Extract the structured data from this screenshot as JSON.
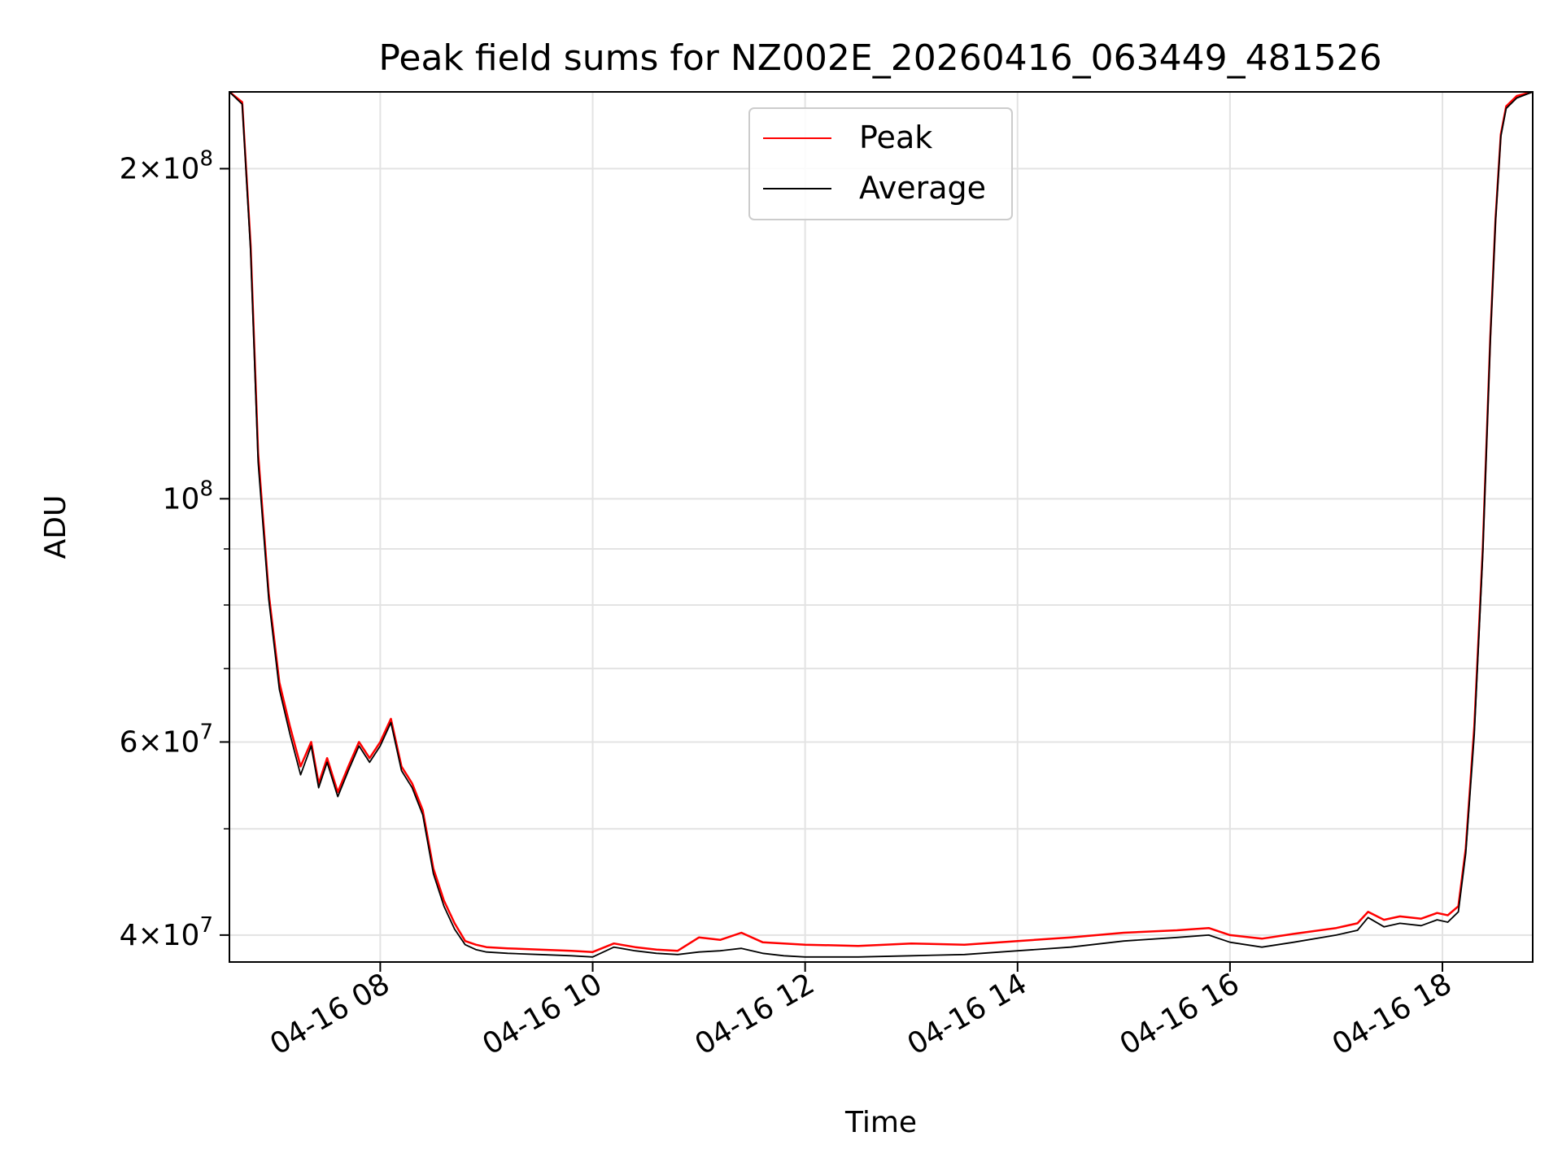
{
  "chart_data": {
    "type": "line",
    "title": "Peak field sums for NZ002E_20260416_063449_481526",
    "xlabel": "Time",
    "ylabel": "ADU",
    "yscale": "log",
    "xlim": [
      6.58,
      18.85
    ],
    "ylim": [
      37800000,
      235000000
    ],
    "grid": true,
    "legend_position": "upper-center",
    "x_ticks": [
      {
        "value": 8,
        "label": "04-16 08"
      },
      {
        "value": 10,
        "label": "04-16 10"
      },
      {
        "value": 12,
        "label": "04-16 12"
      },
      {
        "value": 14,
        "label": "04-16 14"
      },
      {
        "value": 16,
        "label": "04-16 16"
      },
      {
        "value": 18,
        "label": "04-16 18"
      }
    ],
    "y_ticks": [
      {
        "value": 40000000,
        "base": "4×10",
        "exp": "7"
      },
      {
        "value": 60000000,
        "base": "6×10",
        "exp": "7"
      },
      {
        "value": 100000000,
        "base": "10",
        "exp": "8"
      },
      {
        "value": 200000000,
        "base": "2×10",
        "exp": "8"
      }
    ],
    "y_minor_ticks": [
      50000000,
      70000000,
      80000000,
      90000000
    ],
    "series": [
      {
        "name": "Peak",
        "color": "#ff0000",
        "x": [
          6.58,
          6.7,
          6.78,
          6.85,
          6.95,
          7.05,
          7.15,
          7.25,
          7.35,
          7.42,
          7.5,
          7.6,
          7.7,
          7.8,
          7.9,
          8.0,
          8.1,
          8.2,
          8.3,
          8.4,
          8.5,
          8.6,
          8.7,
          8.8,
          8.9,
          9.0,
          9.2,
          9.5,
          9.8,
          10.0,
          10.2,
          10.4,
          10.6,
          10.8,
          11.0,
          11.2,
          11.4,
          11.6,
          11.8,
          12.0,
          12.5,
          13.0,
          13.5,
          14.0,
          14.5,
          15.0,
          15.5,
          15.8,
          16.0,
          16.3,
          16.6,
          17.0,
          17.2,
          17.3,
          17.45,
          17.6,
          17.8,
          17.95,
          18.05,
          18.15,
          18.22,
          18.3,
          18.38,
          18.45,
          18.5,
          18.55,
          18.6,
          18.7,
          18.85
        ],
        "y": [
          235000000,
          230000000,
          170000000,
          110000000,
          82000000,
          68000000,
          62000000,
          57000000,
          60000000,
          55000000,
          58000000,
          54000000,
          57000000,
          60000000,
          58000000,
          60000000,
          63000000,
          57000000,
          55000000,
          52000000,
          46000000,
          43000000,
          41000000,
          39500000,
          39200000,
          39000000,
          38900000,
          38800000,
          38700000,
          38600000,
          39300000,
          39000000,
          38800000,
          38700000,
          39800000,
          39600000,
          40200000,
          39400000,
          39300000,
          39200000,
          39100000,
          39300000,
          39200000,
          39500000,
          39800000,
          40200000,
          40400000,
          40600000,
          40000000,
          39700000,
          40100000,
          40600000,
          41000000,
          42000000,
          41300000,
          41600000,
          41400000,
          41900000,
          41700000,
          42500000,
          48000000,
          62000000,
          90000000,
          140000000,
          180000000,
          215000000,
          228000000,
          233000000,
          235000000
        ]
      },
      {
        "name": "Average",
        "color": "#000000",
        "x": [
          6.58,
          6.7,
          6.78,
          6.85,
          6.95,
          7.05,
          7.15,
          7.25,
          7.35,
          7.42,
          7.5,
          7.6,
          7.7,
          7.8,
          7.9,
          8.0,
          8.1,
          8.2,
          8.3,
          8.4,
          8.5,
          8.6,
          8.7,
          8.8,
          8.9,
          9.0,
          9.2,
          9.5,
          9.8,
          10.0,
          10.2,
          10.4,
          10.6,
          10.8,
          11.0,
          11.2,
          11.4,
          11.6,
          11.8,
          12.0,
          12.5,
          13.0,
          13.5,
          14.0,
          14.5,
          15.0,
          15.5,
          15.8,
          16.0,
          16.3,
          16.6,
          17.0,
          17.2,
          17.3,
          17.45,
          17.6,
          17.8,
          17.95,
          18.05,
          18.15,
          18.22,
          18.3,
          18.38,
          18.45,
          18.5,
          18.55,
          18.6,
          18.7,
          18.85
        ],
        "y": [
          235000000,
          229000000,
          168000000,
          108000000,
          81000000,
          67000000,
          61000000,
          56000000,
          59500000,
          54500000,
          57500000,
          53500000,
          56500000,
          59500000,
          57500000,
          59500000,
          62500000,
          56500000,
          54500000,
          51500000,
          45500000,
          42500000,
          40500000,
          39200000,
          38800000,
          38600000,
          38500000,
          38400000,
          38300000,
          38200000,
          39000000,
          38700000,
          38500000,
          38400000,
          38600000,
          38700000,
          38900000,
          38500000,
          38300000,
          38200000,
          38200000,
          38300000,
          38400000,
          38700000,
          39000000,
          39500000,
          39800000,
          40000000,
          39400000,
          39000000,
          39400000,
          40000000,
          40400000,
          41500000,
          40700000,
          41000000,
          40800000,
          41300000,
          41100000,
          42000000,
          47500000,
          61000000,
          89000000,
          139000000,
          179000000,
          214000000,
          227000000,
          232000000,
          235000000
        ]
      }
    ]
  }
}
